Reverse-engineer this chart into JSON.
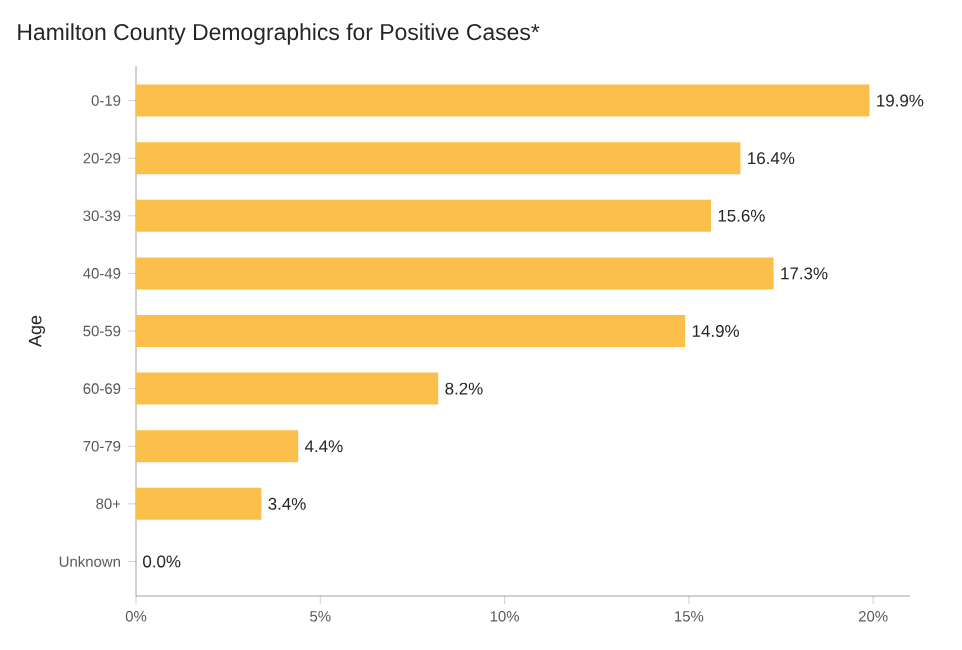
{
  "chart_data": {
    "type": "bar",
    "orientation": "horizontal",
    "title": "Hamilton County Demographics for Positive Cases*",
    "ylabel": "Age",
    "categories": [
      "0-19",
      "20-29",
      "30-39",
      "40-49",
      "50-59",
      "60-69",
      "70-79",
      "80+",
      "Unknown"
    ],
    "values": [
      19.9,
      16.4,
      15.6,
      17.3,
      14.9,
      8.2,
      4.4,
      3.4,
      0.0
    ],
    "value_labels": [
      "19.9%",
      "16.4%",
      "15.6%",
      "17.3%",
      "14.9%",
      "8.2%",
      "4.4%",
      "3.4%",
      "0.0%"
    ],
    "color": "#fdbf4b",
    "xlim": [
      0,
      21
    ],
    "xticks": [
      {
        "value": 0,
        "label": "0%"
      },
      {
        "value": 5,
        "label": "5%"
      },
      {
        "value": 10,
        "label": "10%"
      },
      {
        "value": 15,
        "label": "15%"
      },
      {
        "value": 20,
        "label": "20%"
      }
    ]
  }
}
